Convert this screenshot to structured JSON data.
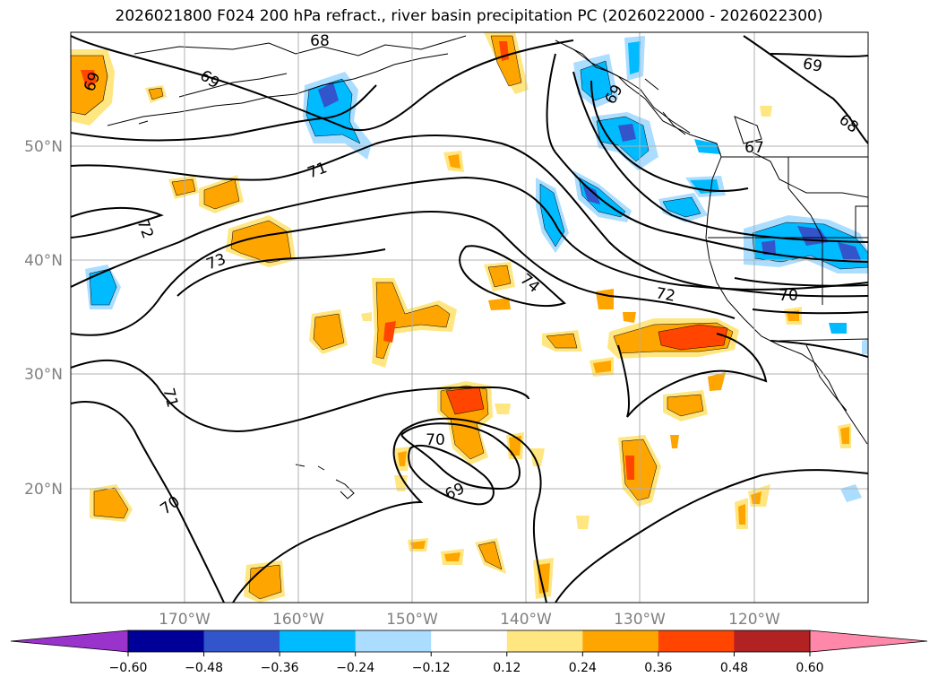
{
  "title": "2026021800 F024 200 hPa refract., river basin precipitation PC (2026022000 - 2026022300)",
  "latitude_labels": [
    "50°N",
    "40°N",
    "30°N",
    "20°N"
  ],
  "longitude_labels": [
    "170°W",
    "160°W",
    "150°W",
    "140°W",
    "130°W",
    "120°W"
  ],
  "contour_labels": [
    "69",
    "68",
    "67",
    "71",
    "72",
    "73",
    "74",
    "72",
    "70",
    "71",
    "70",
    "70",
    "69"
  ],
  "colorbar": {
    "ticks": [
      "−0.60",
      "−0.48",
      "−0.36",
      "−0.24",
      "−0.12",
      "0.12",
      "0.24",
      "0.36",
      "0.48",
      "0.60"
    ],
    "colors": [
      "#9933cc",
      "#000099",
      "#3355cc",
      "#00bbff",
      "#aaddff",
      "#ffffff",
      "#ffe680",
      "#ffa500",
      "#ff4500",
      "#b22222",
      "#ff88aa"
    ]
  },
  "palette": {
    "neg_light": "#aaddff",
    "neg_mid": "#00bbff",
    "neg_strong": "#3355cc",
    "pos_light": "#ffe680",
    "pos_mid": "#ffa500",
    "pos_strong": "#ff4500"
  }
}
